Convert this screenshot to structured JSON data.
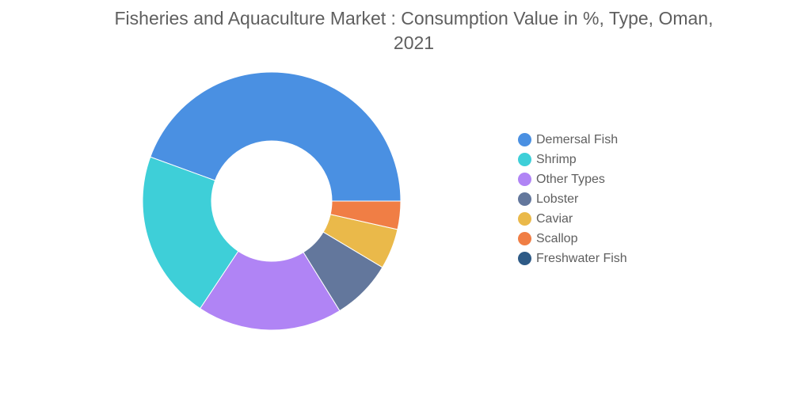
{
  "chart_data": {
    "type": "pie",
    "title": "Fisheries and Aquaculture Market : Consumption Value in %, Type, Oman, 2021",
    "title_lines": [
      "Fisheries and Aquaculture Market : Consumption Value in %, Type, Oman,",
      "2021"
    ],
    "donut": true,
    "legend_position": "right",
    "categories": [
      "Demersal Fish",
      "Shrimp",
      "Other Types",
      "Lobster",
      "Caviar",
      "Scallop",
      "Freshwater Fish"
    ],
    "values": [
      44,
      21,
      18,
      7.5,
      5,
      3.5,
      0
    ],
    "colors": [
      "#4a90e2",
      "#3ecfd8",
      "#b084f5",
      "#63779c",
      "#eab94a",
      "#f07e45",
      "#2e5a86"
    ]
  }
}
